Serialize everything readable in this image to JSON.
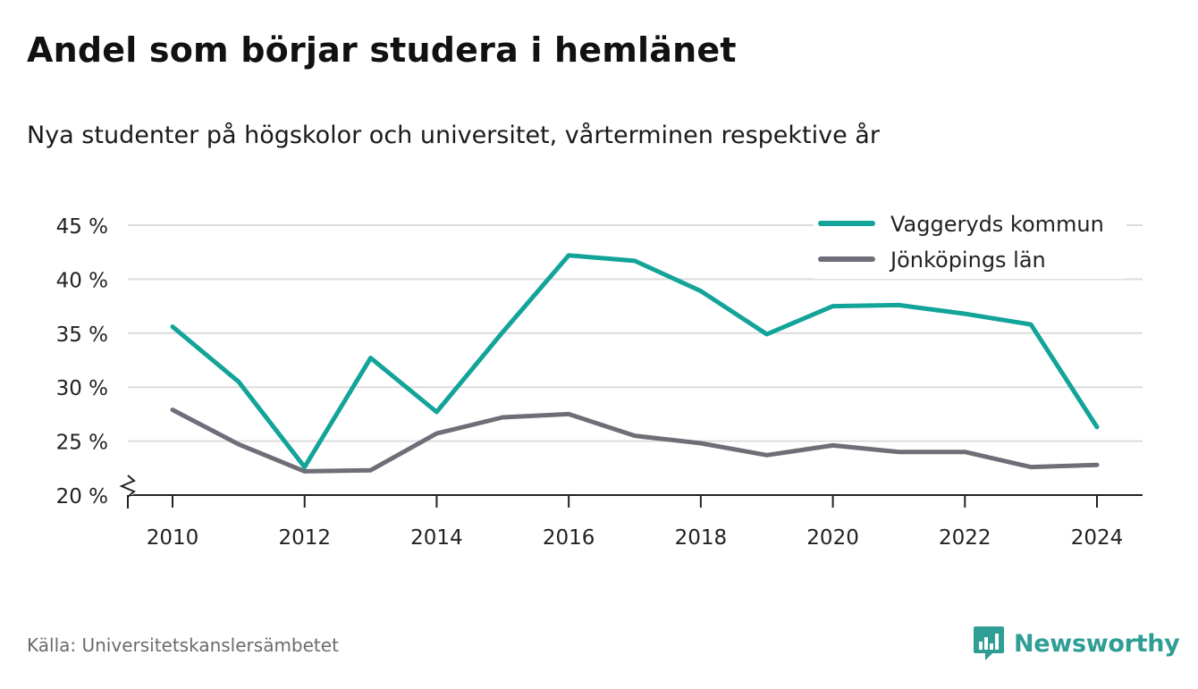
{
  "title": "Andel som börjar studera i hemlänet",
  "subtitle": "Nya studenter på högskolor och universitet, vårterminen respektive år",
  "source": "Källa: Universitetskanslersämbetet",
  "brand": "Newsworthy",
  "colors": {
    "vaggeryd": "#12a399",
    "jonkoping": "#6e6e78",
    "grid": "#dcdcdc",
    "brand": "#2f9e95"
  },
  "chart_data": {
    "type": "line",
    "x": [
      2010,
      2011,
      2012,
      2013,
      2014,
      2015,
      2016,
      2017,
      2018,
      2019,
      2020,
      2021,
      2022,
      2023,
      2024
    ],
    "x_ticks": [
      2010,
      2012,
      2014,
      2016,
      2018,
      2020,
      2022,
      2024
    ],
    "x_tick_labels": [
      "2010",
      "2012",
      "2014",
      "2016",
      "2018",
      "2020",
      "2022",
      "2024"
    ],
    "y_ticks": [
      20,
      25,
      30,
      35,
      40,
      45
    ],
    "y_tick_labels": [
      "20 %",
      "25 %",
      "30 %",
      "35 %",
      "40 %",
      "45 %"
    ],
    "ylim": [
      20,
      45
    ],
    "y_axis_break": true,
    "grid": true,
    "legend_position": "top-right",
    "series": [
      {
        "name": "Vaggeryds kommun",
        "color": "#12a399",
        "values": [
          35.6,
          30.5,
          22.6,
          32.7,
          27.7,
          35.1,
          42.2,
          41.7,
          38.9,
          34.9,
          37.5,
          37.6,
          36.8,
          35.8,
          26.3
        ]
      },
      {
        "name": "Jönköpings län",
        "color": "#6e6e78",
        "values": [
          27.9,
          24.7,
          22.2,
          22.3,
          25.7,
          27.2,
          27.5,
          25.5,
          24.8,
          23.7,
          24.6,
          24.0,
          24.0,
          22.6,
          22.8
        ]
      }
    ]
  }
}
